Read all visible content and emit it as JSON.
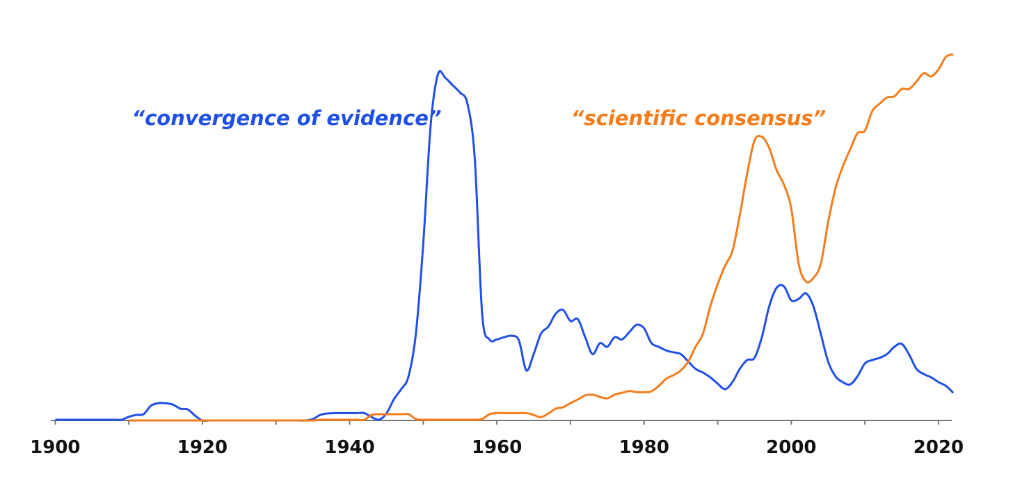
{
  "chart_data": {
    "type": "line",
    "x": [
      1900,
      1901,
      1902,
      1903,
      1904,
      1905,
      1906,
      1907,
      1908,
      1909,
      1910,
      1911,
      1912,
      1913,
      1914,
      1915,
      1916,
      1917,
      1918,
      1919,
      1920,
      1921,
      1922,
      1923,
      1924,
      1925,
      1926,
      1927,
      1928,
      1929,
      1930,
      1931,
      1932,
      1933,
      1934,
      1935,
      1936,
      1937,
      1938,
      1939,
      1940,
      1941,
      1942,
      1943,
      1944,
      1945,
      1946,
      1947,
      1948,
      1949,
      1950,
      1951,
      1952,
      1953,
      1954,
      1955,
      1956,
      1957,
      1958,
      1959,
      1960,
      1961,
      1962,
      1963,
      1964,
      1965,
      1966,
      1967,
      1968,
      1969,
      1970,
      1971,
      1972,
      1973,
      1974,
      1975,
      1976,
      1977,
      1978,
      1979,
      1980,
      1981,
      1982,
      1983,
      1984,
      1985,
      1986,
      1987,
      1988,
      1989,
      1990,
      1991,
      1992,
      1993,
      1994,
      1995,
      1996,
      1997,
      1998,
      1999,
      2000,
      2001,
      2002,
      2003,
      2004,
      2005,
      2006,
      2007,
      2008,
      2009,
      2010,
      2011,
      2012,
      2013,
      2014,
      2015,
      2016,
      2017,
      2018,
      2019,
      2020,
      2021,
      2022
    ],
    "series": [
      {
        "name": "“convergence of evidence”",
        "color": "#1f4fe6",
        "values": [
          0.2,
          0.2,
          0.2,
          0.2,
          0.2,
          0.2,
          0.2,
          0.2,
          0.2,
          0.2,
          1,
          1.5,
          1.7,
          4,
          4.7,
          4.7,
          4.3,
          3.2,
          3,
          1.3,
          0,
          0,
          0,
          0,
          0,
          0,
          0,
          0,
          0,
          0,
          0,
          0,
          0,
          0,
          0,
          0.4,
          1.5,
          1.9,
          2,
          2,
          2,
          2,
          2,
          0.9,
          0.2,
          1.9,
          5.7,
          8.5,
          12,
          23.6,
          48,
          80,
          94,
          93,
          91,
          89,
          86,
          71,
          29,
          22,
          22,
          22.6,
          23,
          21.7,
          13.6,
          18,
          23.6,
          25.5,
          29,
          30,
          27,
          27.5,
          22.6,
          18,
          21,
          20,
          22.6,
          22,
          24,
          26,
          25,
          21,
          20,
          19,
          18.5,
          18,
          16,
          14,
          13,
          11.7,
          10,
          8.5,
          10.4,
          14,
          16.4,
          17,
          22.6,
          31,
          36,
          36.4,
          32.6,
          33,
          34.5,
          31,
          23.6,
          16,
          12,
          10.4,
          9.8,
          12,
          15.5,
          16.4,
          17,
          18,
          20,
          20.8,
          17.9,
          14,
          12.6,
          11.7,
          10.4,
          9.4,
          7.5
        ]
      },
      {
        "name": "“scientific consensus”",
        "color": "#f57c1a",
        "values": [
          null,
          null,
          null,
          null,
          null,
          null,
          null,
          null,
          null,
          null,
          0,
          0,
          0,
          0,
          0,
          0,
          0,
          0,
          0,
          0,
          0,
          0,
          0,
          0,
          0,
          0,
          0,
          0,
          0,
          0,
          0,
          0,
          0,
          0,
          0,
          0,
          0.2,
          0.2,
          0.2,
          0.2,
          0.2,
          0.2,
          0.2,
          1.5,
          1.7,
          1.7,
          1.7,
          1.7,
          1.7,
          0.4,
          0.2,
          0.2,
          0.2,
          0.2,
          0.2,
          0.2,
          0.2,
          0.2,
          0.4,
          1.7,
          2,
          2,
          2,
          2,
          2,
          1.5,
          0.9,
          1.9,
          3.2,
          3.6,
          4.7,
          5.7,
          6.8,
          7,
          6.4,
          6,
          7,
          7.5,
          8,
          7.7,
          7.7,
          7.9,
          9.4,
          11.3,
          12.3,
          13.6,
          16,
          20,
          23.6,
          31,
          37,
          42,
          46,
          55.7,
          67,
          76,
          77,
          74,
          68,
          64,
          57.5,
          42.5,
          37.7,
          38.7,
          42.5,
          53.8,
          63,
          69,
          73.6,
          78,
          78.7,
          84,
          86,
          87.7,
          88,
          90,
          90,
          92,
          94.3,
          93.4,
          95.3,
          98.7,
          99.4
        ]
      }
    ],
    "xlim": [
      1899.4,
      2021.8
    ],
    "xticks": [
      1900,
      1920,
      1940,
      1960,
      1980,
      2000,
      2020
    ],
    "xminorticks": [
      1910,
      1930,
      1950,
      1970,
      1990,
      2010
    ],
    "ylim": [
      0,
      100
    ]
  }
}
